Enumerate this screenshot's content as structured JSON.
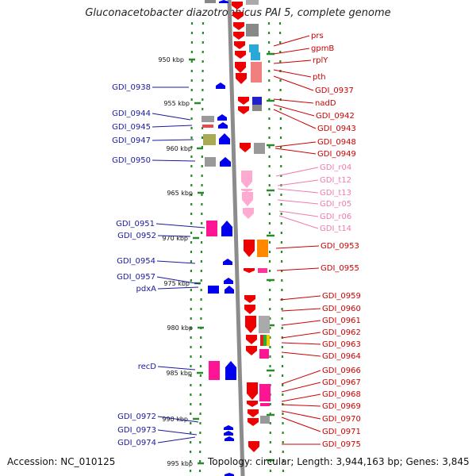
{
  "title": "Gluconacetobacter diazotrophicus PAI 5, complete genome",
  "footer": {
    "accession": "Accession: NC_010125",
    "topology": "Topology: circular; Length: 3,944,163 bp; Genes: 3,845"
  },
  "colors": {
    "forward_cds": "#0000ee",
    "reverse_cds": "#ee0000",
    "rna": "#ffaad0",
    "left_label": "#1a1a9e",
    "right_label": "#cc0000",
    "rna_label": "#f07ab0",
    "backbone": "#8c8c8c",
    "ruler": "#2a8a2a"
  },
  "ticks": [
    "950 kbp",
    "955 kbp",
    "960 kbp",
    "965 kbp",
    "970 kbp",
    "975 kbp",
    "980 kbp",
    "985 kbp",
    "990 kbp",
    "995 kbp"
  ],
  "left_labels": [
    "GDI_0938",
    "GDI_0944",
    "GDI_0945",
    "GDI_0947",
    "GDI_0950",
    "GDI_0951",
    "GDI_0952",
    "GDI_0954",
    "GDI_0957",
    "pdxA",
    "recD",
    "GDI_0972",
    "GDI_0973",
    "GDI_0974"
  ],
  "right_labels": [
    {
      "text": "prs",
      "type": "cds"
    },
    {
      "text": "gpmB",
      "type": "cds"
    },
    {
      "text": "rplY",
      "type": "cds"
    },
    {
      "text": "pth",
      "type": "cds"
    },
    {
      "text": "GDI_0937",
      "type": "cds"
    },
    {
      "text": "nadD",
      "type": "cds"
    },
    {
      "text": "GDI_0942",
      "type": "cds"
    },
    {
      "text": "GDI_0943",
      "type": "cds"
    },
    {
      "text": "GDI_0948",
      "type": "cds"
    },
    {
      "text": "GDI_0949",
      "type": "cds"
    },
    {
      "text": "GDI_r04",
      "type": "rna"
    },
    {
      "text": "GDI_t12",
      "type": "rna"
    },
    {
      "text": "GDI_t13",
      "type": "rna"
    },
    {
      "text": "GDI_r05",
      "type": "rna"
    },
    {
      "text": "GDI_r06",
      "type": "rna"
    },
    {
      "text": "GDI_t14",
      "type": "rna"
    },
    {
      "text": "GDI_0953",
      "type": "cds"
    },
    {
      "text": "GDI_0955",
      "type": "cds"
    },
    {
      "text": "GDI_0959",
      "type": "cds"
    },
    {
      "text": "GDI_0960",
      "type": "cds"
    },
    {
      "text": "GDI_0961",
      "type": "cds"
    },
    {
      "text": "GDI_0962",
      "type": "cds"
    },
    {
      "text": "GDI_0963",
      "type": "cds"
    },
    {
      "text": "GDI_0964",
      "type": "cds"
    },
    {
      "text": "GDI_0966",
      "type": "cds"
    },
    {
      "text": "GDI_0967",
      "type": "cds"
    },
    {
      "text": "GDI_0968",
      "type": "cds"
    },
    {
      "text": "GDI_0969",
      "type": "cds"
    },
    {
      "text": "GDI_0970",
      "type": "cds"
    },
    {
      "text": "GDI_0971",
      "type": "cds"
    },
    {
      "text": "GDI_0975",
      "type": "cds"
    }
  ]
}
